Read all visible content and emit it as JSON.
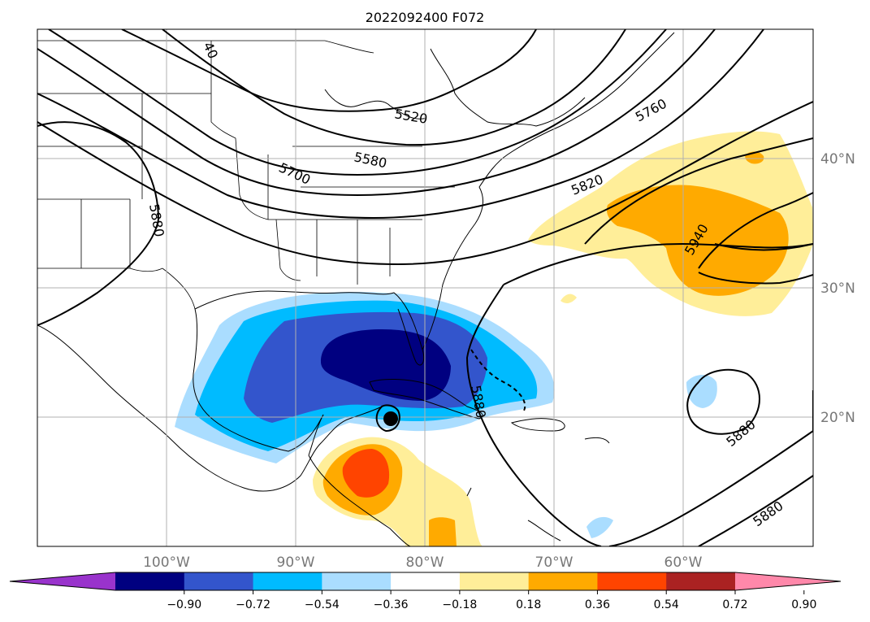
{
  "title": "2022092400 F072",
  "map": {
    "lat_labels": [
      "40°N",
      "30°N",
      "20°N"
    ],
    "lon_labels": [
      "100°W",
      "90°W",
      "80°W",
      "70°W",
      "60°W"
    ],
    "grid_color": "#b0b0b0",
    "contour_labels": [
      "40",
      "5520",
      "5580",
      "5700",
      "5760",
      "5820",
      "5880",
      "5940",
      "5880",
      "5880",
      "5880"
    ],
    "storm_marker": "tropical-cyclone-center"
  },
  "colorbar": {
    "ticks": [
      "−0.90",
      "−0.72",
      "−0.54",
      "−0.36",
      "−0.18",
      "0.18",
      "0.36",
      "0.54",
      "0.72",
      "0.90"
    ],
    "colors": [
      "#9933cc",
      "#000080",
      "#3355cc",
      "#00bbff",
      "#aaddff",
      "#ffffff",
      "#ffee99",
      "#ffaa00",
      "#ff4400",
      "#aa2222",
      "#ff88aa"
    ]
  }
}
